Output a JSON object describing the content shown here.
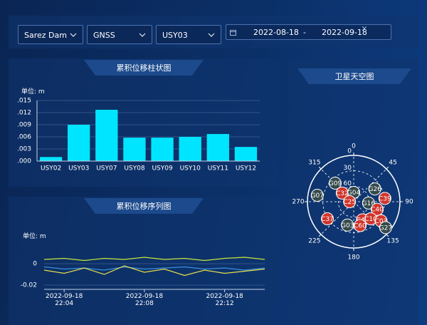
{
  "filters": {
    "site": "Sarez Dam",
    "method": "GNSS",
    "station": "USY03",
    "date_start": "2022-08-18",
    "date_separator": "-",
    "date_end": "2022-09-18"
  },
  "bar_panel": {
    "title": "累积位移柱状图",
    "unit_label": "单位:  m",
    "chart": {
      "type": "bar",
      "categories": [
        "USY02",
        "USY03",
        "USY07",
        "USY08",
        "USY09",
        "USY10",
        "USY11",
        "USY12"
      ],
      "values": [
        0.001,
        0.009,
        0.0127,
        0.0058,
        0.0058,
        0.006,
        0.0067,
        0.0035
      ],
      "color": "#00e5ff",
      "ylim": [
        0,
        0.015
      ],
      "yticks": [
        {
          "value": 0,
          "label": ".000"
        },
        {
          "value": 0.003,
          "label": ".003"
        },
        {
          "value": 0.006,
          "label": ".006"
        },
        {
          "value": 0.009,
          "label": ".009"
        },
        {
          "value": 0.012,
          "label": ".012"
        },
        {
          "value": 0.015,
          "label": ".015"
        }
      ],
      "grid": true
    }
  },
  "line_panel": {
    "title": "累积位移序列图",
    "unit_label": "单位:  m",
    "chart": {
      "type": "line",
      "x": [
        "2022-09-18 22:03",
        "2022-09-18 22:04",
        "2022-09-18 22:05",
        "2022-09-18 22:06",
        "2022-09-18 22:07",
        "2022-09-18 22:08",
        "2022-09-18 22:09",
        "2022-09-18 22:10",
        "2022-09-18 22:11",
        "2022-09-18 22:12",
        "2022-09-18 22:13",
        "2022-09-18 22:14"
      ],
      "series": [
        {
          "color": "#c8e63c",
          "values": [
            0.004,
            0.005,
            0.003,
            0.005,
            0.004,
            0.006,
            0.004,
            0.005,
            0.003,
            0.005,
            0.006,
            0.004
          ]
        },
        {
          "color": "#3a8fd8",
          "values": [
            -0.003,
            -0.005,
            -0.004,
            -0.006,
            -0.003,
            -0.005,
            -0.004,
            -0.003,
            -0.005,
            -0.004,
            -0.006,
            -0.004
          ]
        },
        {
          "color": "#e8e04a",
          "values": [
            -0.006,
            -0.009,
            -0.004,
            -0.01,
            -0.002,
            -0.008,
            -0.005,
            -0.011,
            -0.006,
            -0.009,
            -0.007,
            -0.005
          ]
        }
      ],
      "ylim": [
        -0.022,
        0.012
      ],
      "yticks": [
        -0.02,
        0
      ],
      "xticks": [
        {
          "value": "2022-09-18 22:04",
          "label": "2022-09-18\n22:04"
        },
        {
          "value": "2022-09-18 22:08",
          "label": "2022-09-18\n22:08"
        },
        {
          "value": "2022-09-18 22:12",
          "label": "2022-09-18\n22:12"
        }
      ]
    }
  },
  "sky_panel": {
    "title": "卫星天空图",
    "chart": {
      "type": "polar-scatter",
      "angle_ticks": [
        0,
        45,
        90,
        135,
        180,
        225,
        270,
        315
      ],
      "rlim": [
        90,
        0
      ],
      "radius_ticks": [
        30,
        60
      ],
      "outer_label": 0,
      "satellites": [
        {
          "name": "G09",
          "azimuth": 315,
          "elevation": 39,
          "color": "#34494a"
        },
        {
          "name": "C32",
          "azimuth": 307,
          "elevation": 62,
          "color": "#d0352c"
        },
        {
          "name": "G04",
          "azimuth": 0,
          "elevation": 72,
          "color": "#34494a"
        },
        {
          "name": "G26",
          "azimuth": 59,
          "elevation": 42,
          "color": "#34494a"
        },
        {
          "name": "C39",
          "azimuth": 84,
          "elevation": 29,
          "color": "#d0352c"
        },
        {
          "name": "C25",
          "azimuth": 270,
          "elevation": 82,
          "color": "#d0352c"
        },
        {
          "name": "G16",
          "azimuth": 95,
          "elevation": 61,
          "color": "#34494a"
        },
        {
          "name": "C40",
          "azimuth": 108,
          "elevation": 42,
          "color": "#d0352c"
        },
        {
          "name": "G07",
          "azimuth": 280,
          "elevation": 18,
          "color": "#34494a"
        },
        {
          "name": "C37",
          "azimuth": 237,
          "elevation": 29,
          "color": "#d0352c"
        },
        {
          "name": "C41",
          "azimuth": 154,
          "elevation": 51,
          "color": "#d0352c"
        },
        {
          "name": "C10",
          "azimuth": 135,
          "elevation": 43,
          "color": "#d0352c"
        },
        {
          "name": "C03",
          "azimuth": 125,
          "elevation": 25,
          "color": "#d0352c"
        },
        {
          "name": "G03",
          "azimuth": 195,
          "elevation": 43,
          "color": "#34494a"
        },
        {
          "name": "C60",
          "azimuth": 165,
          "elevation": 42,
          "color": "#d0352c"
        },
        {
          "name": "G27",
          "azimuth": 129,
          "elevation": 10,
          "color": "#34494a"
        }
      ]
    }
  }
}
